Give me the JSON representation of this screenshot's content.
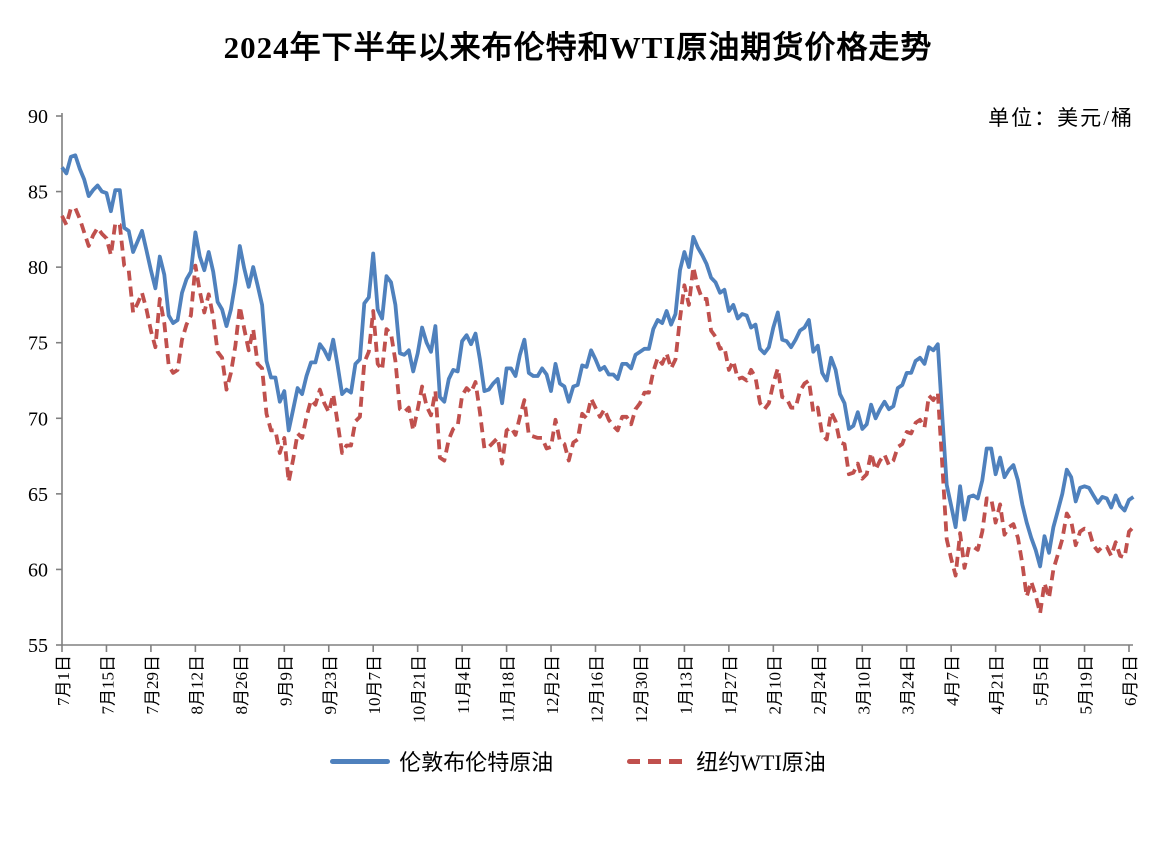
{
  "chart_data": {
    "type": "line",
    "title": "2024年下半年以来布伦特和WTI原油期货价格走势",
    "unit": "单位：美元/桶",
    "ylabel": "",
    "xlabel": "",
    "grid": false,
    "legend_position": "bottom",
    "axis_color": "#808080",
    "y_axis": {
      "min": 55,
      "max": 90,
      "step": 5,
      "ticks": [
        55,
        60,
        65,
        70,
        75,
        80,
        85,
        90
      ]
    },
    "x_tick_labels": [
      "7月1日",
      "7月15日",
      "7月29日",
      "8月12日",
      "8月26日",
      "9月9日",
      "9月23日",
      "10月7日",
      "10月21日",
      "11月4日",
      "11月18日",
      "12月2日",
      "12月16日",
      "12月30日",
      "1月13日",
      "1月27日",
      "2月10日",
      "2月24日",
      "3月10日",
      "3月24日",
      "4月7日",
      "4月21日",
      "5月5日",
      "5月19日",
      "6月2日"
    ],
    "points_per_tick": 10,
    "series": [
      {
        "name": "伦敦布伦特原油",
        "color": "#4F81BD",
        "style": "solid",
        "values": [
          86.6,
          86.2,
          87.3,
          87.4,
          86.5,
          85.8,
          84.7,
          85.1,
          85.4,
          85.0,
          84.9,
          83.7,
          85.1,
          85.1,
          82.6,
          82.4,
          81.0,
          81.7,
          82.4,
          81.1,
          79.8,
          78.6,
          80.7,
          79.5,
          76.8,
          76.3,
          76.5,
          78.3,
          79.2,
          79.7,
          82.3,
          80.7,
          79.8,
          81.0,
          79.7,
          77.7,
          77.2,
          76.1,
          77.2,
          79.0,
          81.4,
          79.9,
          78.7,
          80.0,
          78.8,
          77.5,
          73.8,
          72.7,
          72.7,
          71.1,
          71.8,
          69.2,
          70.6,
          72.0,
          71.6,
          72.8,
          73.7,
          73.7,
          74.9,
          74.5,
          73.9,
          75.2,
          73.5,
          71.6,
          71.9,
          71.7,
          73.6,
          73.9,
          77.6,
          78.0,
          80.9,
          77.2,
          76.6,
          79.4,
          79.0,
          77.5,
          74.3,
          74.2,
          74.5,
          73.1,
          74.3,
          76.0,
          75.0,
          74.4,
          76.1,
          71.4,
          71.1,
          72.6,
          73.2,
          73.1,
          75.1,
          75.5,
          74.9,
          75.6,
          73.9,
          71.8,
          71.9,
          72.3,
          72.6,
          71.0,
          73.3,
          73.3,
          72.8,
          74.2,
          75.2,
          73.0,
          72.8,
          72.8,
          73.3,
          72.9,
          71.8,
          73.6,
          72.3,
          72.1,
          71.1,
          72.1,
          72.2,
          73.5,
          73.4,
          74.5,
          73.9,
          73.2,
          73.4,
          72.9,
          72.9,
          72.6,
          73.6,
          73.6,
          73.3,
          74.2,
          74.4,
          74.6,
          74.6,
          75.9,
          76.5,
          76.3,
          77.1,
          76.2,
          76.9,
          79.8,
          81.0,
          80.0,
          82.0,
          81.3,
          80.8,
          80.2,
          79.3,
          79.0,
          78.3,
          78.5,
          77.1,
          77.5,
          76.6,
          76.9,
          76.8,
          76.0,
          76.2,
          74.6,
          74.3,
          74.7,
          76.0,
          77.0,
          75.2,
          75.1,
          74.7,
          75.2,
          75.8,
          76.0,
          76.5,
          74.4,
          74.8,
          73.0,
          72.5,
          74.0,
          73.2,
          71.6,
          71.0,
          69.3,
          69.5,
          70.4,
          69.3,
          69.6,
          70.9,
          70.0,
          70.6,
          71.1,
          70.6,
          70.8,
          72.0,
          72.2,
          73.0,
          73.0,
          73.8,
          74.0,
          73.6,
          74.7,
          74.5,
          74.9,
          70.1,
          65.6,
          64.2,
          62.8,
          65.5,
          63.3,
          64.8,
          64.9,
          64.7,
          65.9,
          68.0,
          68.0,
          66.3,
          67.4,
          66.1,
          66.6,
          66.9,
          65.9,
          64.3,
          63.1,
          62.1,
          61.3,
          60.2,
          62.2,
          61.1,
          62.8,
          63.9,
          65.0,
          66.6,
          66.1,
          64.5,
          65.4,
          65.5,
          65.4,
          64.9,
          64.4,
          64.8,
          64.7,
          64.1,
          64.9,
          64.2,
          63.9,
          64.6,
          64.8
        ]
      },
      {
        "name": "纽约WTI原油",
        "color": "#C0504D",
        "style": "dashed",
        "values": [
          83.4,
          82.8,
          83.9,
          83.9,
          83.2,
          82.3,
          81.4,
          82.1,
          82.6,
          82.2,
          81.9,
          80.8,
          82.9,
          82.8,
          80.1,
          79.8,
          77.0,
          77.6,
          78.3,
          77.2,
          75.8,
          74.7,
          77.9,
          76.3,
          73.5,
          73.0,
          73.2,
          75.2,
          76.2,
          76.8,
          80.1,
          78.4,
          77.0,
          78.2,
          76.7,
          74.4,
          74.0,
          71.9,
          73.0,
          74.8,
          77.4,
          75.9,
          74.5,
          75.9,
          73.6,
          73.3,
          70.3,
          69.2,
          69.2,
          67.7,
          68.7,
          65.8,
          67.3,
          69.0,
          68.7,
          70.1,
          71.2,
          70.9,
          71.9,
          71.0,
          70.4,
          71.6,
          69.7,
          67.7,
          68.2,
          68.2,
          69.8,
          70.1,
          73.7,
          74.4,
          77.1,
          73.6,
          73.2,
          75.9,
          75.6,
          73.8,
          70.6,
          70.4,
          70.7,
          69.2,
          70.6,
          72.1,
          70.8,
          70.2,
          71.8,
          67.4,
          67.2,
          68.6,
          69.3,
          69.5,
          71.5,
          72.0,
          71.7,
          72.4,
          70.4,
          68.0,
          68.1,
          68.4,
          68.7,
          67.0,
          69.2,
          69.4,
          68.9,
          70.1,
          71.2,
          68.9,
          68.8,
          68.7,
          68.7,
          68.0,
          68.1,
          69.9,
          68.5,
          68.3,
          67.2,
          68.4,
          68.6,
          70.3,
          70.0,
          71.3,
          70.7,
          70.1,
          70.6,
          69.9,
          69.5,
          69.2,
          70.1,
          70.1,
          69.6,
          70.6,
          71.0,
          71.7,
          71.7,
          73.1,
          74.0,
          73.6,
          74.3,
          73.3,
          73.9,
          76.6,
          78.8,
          77.5,
          80.0,
          78.7,
          77.9,
          77.9,
          75.8,
          75.4,
          74.6,
          74.7,
          73.2,
          73.8,
          72.6,
          72.7,
          72.5,
          73.2,
          72.7,
          71.0,
          70.6,
          71.0,
          72.3,
          73.3,
          71.4,
          71.3,
          70.7,
          70.7,
          71.8,
          72.3,
          72.5,
          70.4,
          70.7,
          68.9,
          68.6,
          70.4,
          69.8,
          68.4,
          68.3,
          66.3,
          66.4,
          67.0,
          66.0,
          66.3,
          67.7,
          66.6,
          67.2,
          67.6,
          66.9,
          67.2,
          68.1,
          68.3,
          69.1,
          69.0,
          69.7,
          69.9,
          69.4,
          71.5,
          71.2,
          71.7,
          66.9,
          62.0,
          60.7,
          59.6,
          62.4,
          60.1,
          61.5,
          61.5,
          61.3,
          62.5,
          64.7,
          64.7,
          63.1,
          64.3,
          62.3,
          62.8,
          63.0,
          62.1,
          60.4,
          58.2,
          59.2,
          58.3,
          57.1,
          59.1,
          58.1,
          60.0,
          61.0,
          62.0,
          63.7,
          63.2,
          61.6,
          62.5,
          62.7,
          62.6,
          61.6,
          61.2,
          61.5,
          61.5,
          60.9,
          61.8,
          60.9,
          60.8,
          62.5,
          62.8
        ]
      }
    ]
  }
}
